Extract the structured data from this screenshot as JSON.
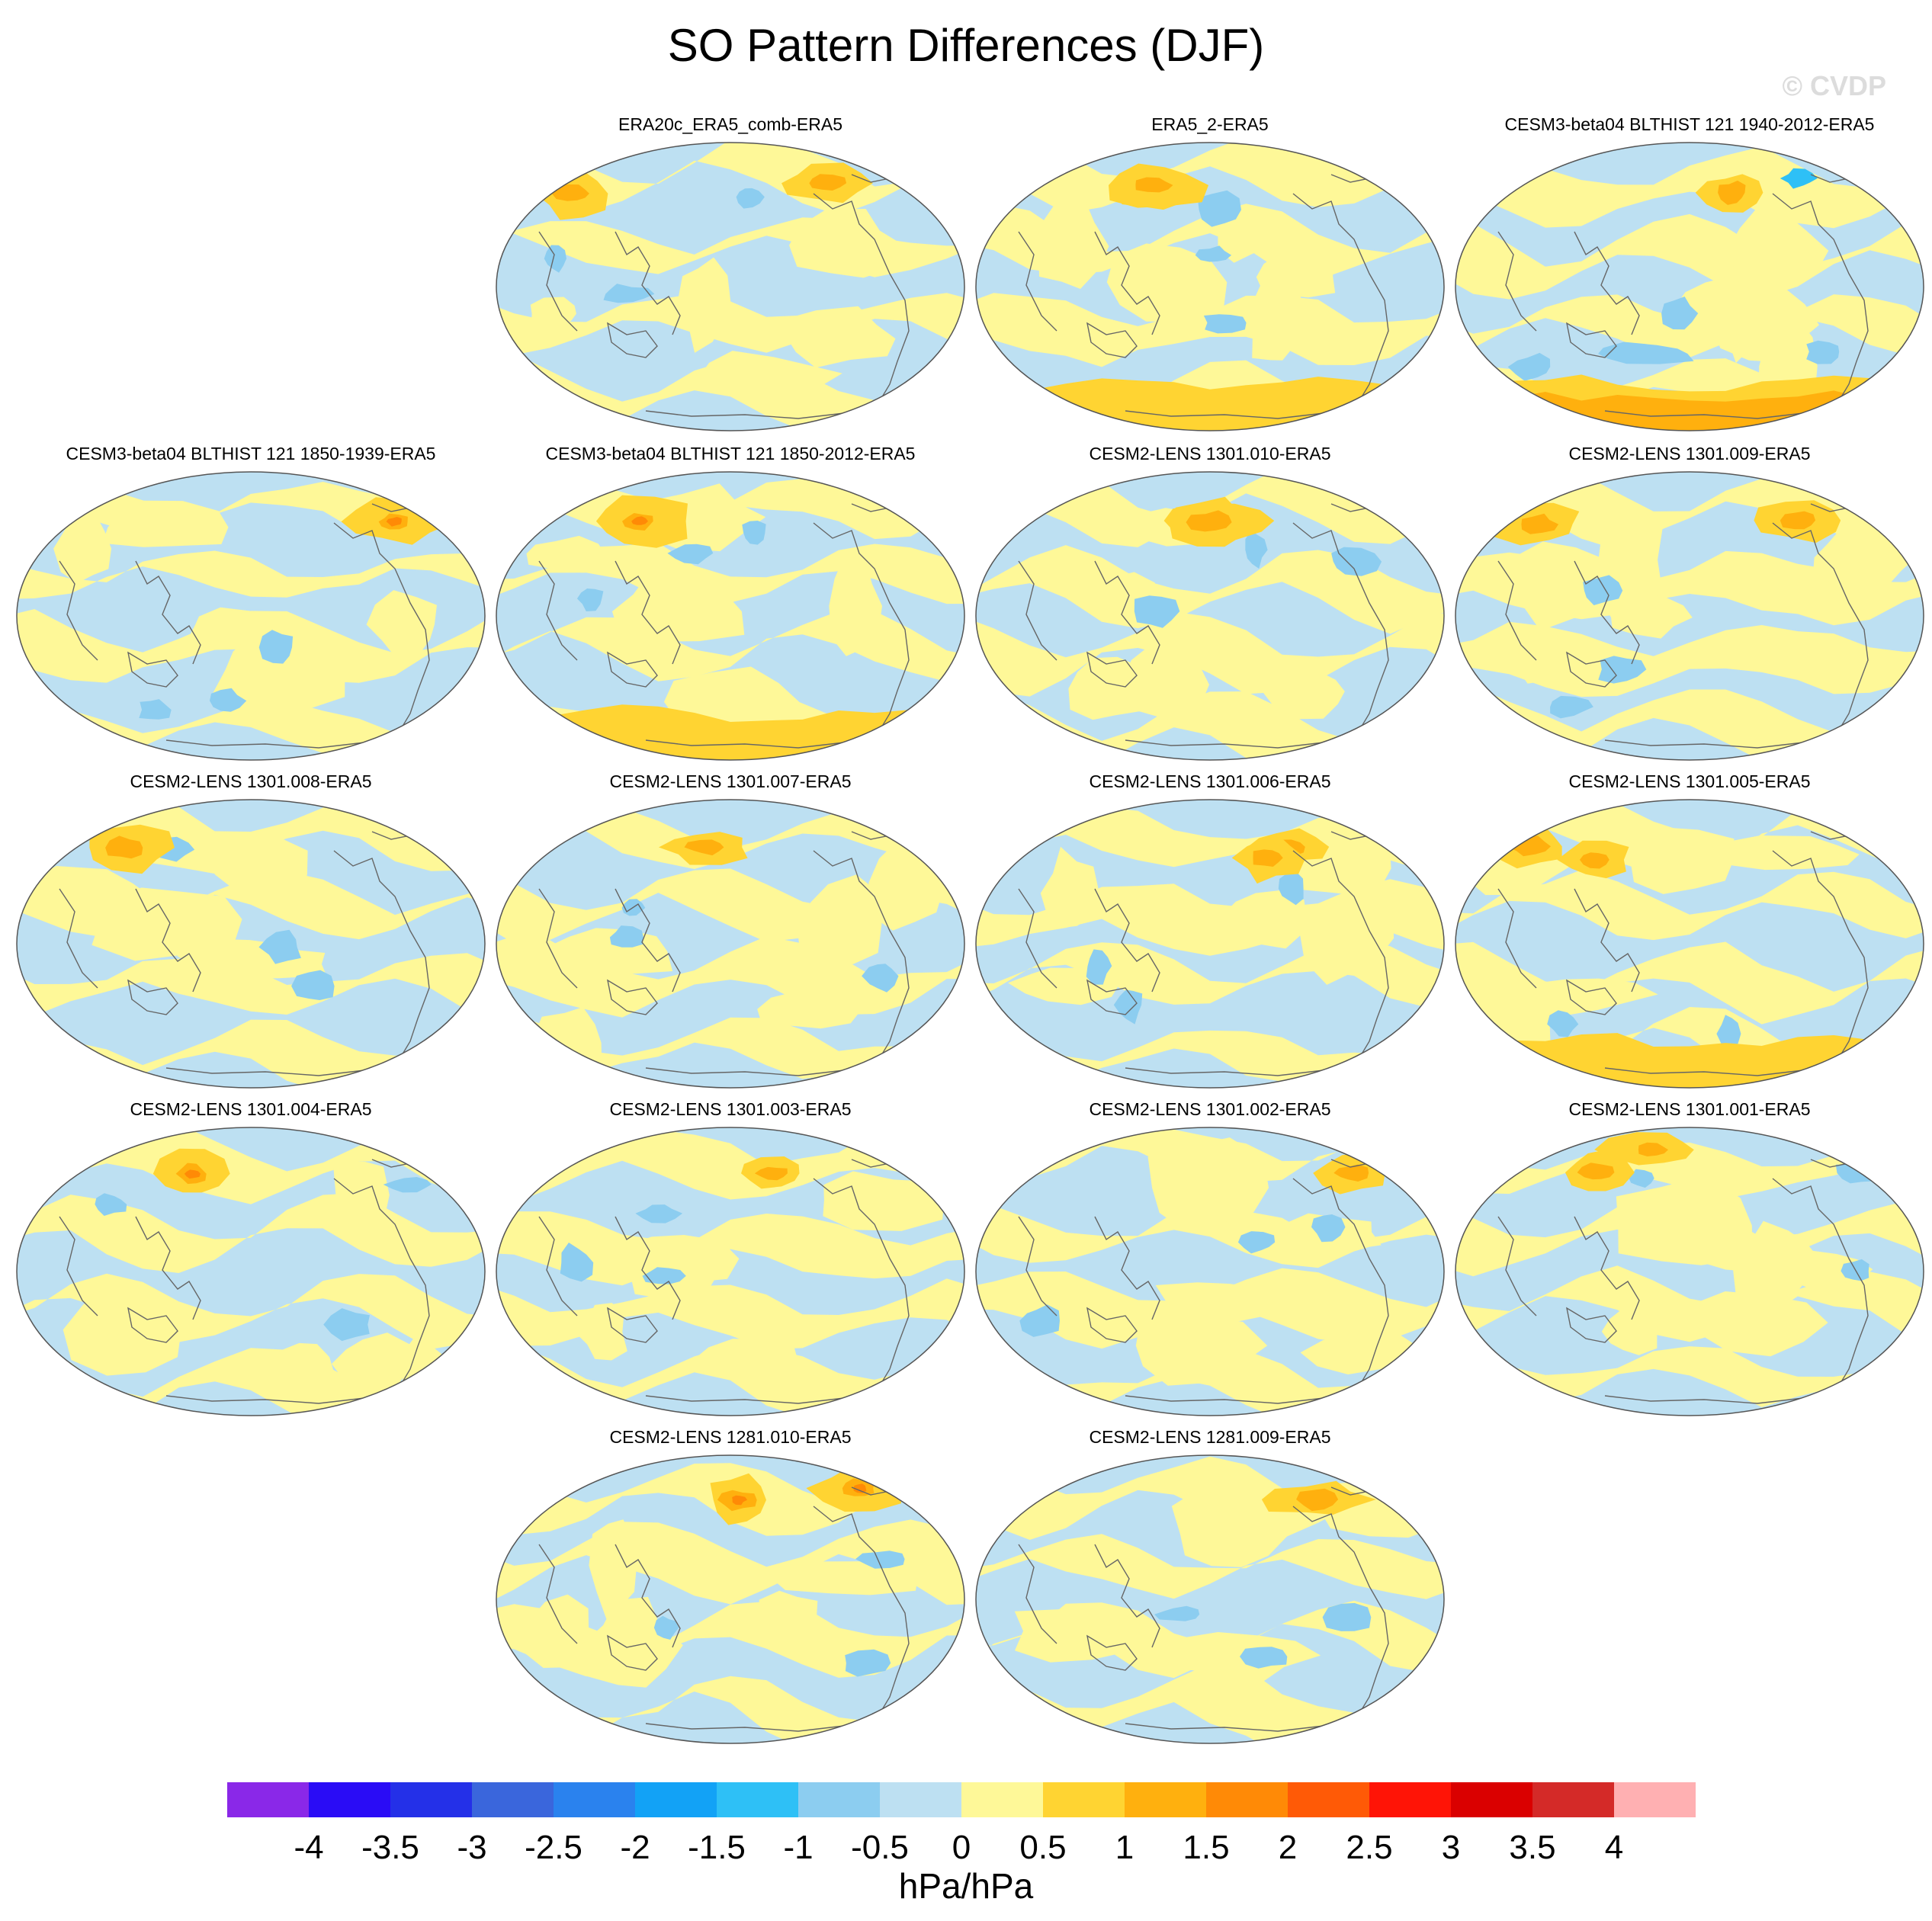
{
  "title": "SO Pattern Differences (DJF)",
  "watermark": "© CVDP",
  "panels": [
    {
      "label": "ERA20c_ERA5_comb-ERA5",
      "variant": 0
    },
    {
      "label": "ERA5_2-ERA5",
      "variant": 1
    },
    {
      "label": "CESM3-beta04 BLTHIST 121 1940-2012-ERA5",
      "variant": 2
    },
    {
      "label": "CESM3-beta04 BLTHIST 121 1850-1939-ERA5",
      "variant": 3
    },
    {
      "label": "CESM3-beta04 BLTHIST 121 1850-2012-ERA5",
      "variant": 4
    },
    {
      "label": "CESM2-LENS 1301.010-ERA5",
      "variant": 5
    },
    {
      "label": "CESM2-LENS 1301.009-ERA5",
      "variant": 6
    },
    {
      "label": "CESM2-LENS 1301.008-ERA5",
      "variant": 7
    },
    {
      "label": "CESM2-LENS 1301.007-ERA5",
      "variant": 8
    },
    {
      "label": "CESM2-LENS 1301.006-ERA5",
      "variant": 9
    },
    {
      "label": "CESM2-LENS 1301.005-ERA5",
      "variant": 10
    },
    {
      "label": "CESM2-LENS 1301.004-ERA5",
      "variant": 11
    },
    {
      "label": "CESM2-LENS 1301.003-ERA5",
      "variant": 12
    },
    {
      "label": "CESM2-LENS 1301.002-ERA5",
      "variant": 13
    },
    {
      "label": "CESM2-LENS 1301.001-ERA5",
      "variant": 14
    },
    {
      "label": "CESM2-LENS 1281.010-ERA5",
      "variant": 15
    },
    {
      "label": "CESM2-LENS 1281.009-ERA5",
      "variant": 16
    }
  ],
  "colorbar": {
    "ticks": [
      "-4",
      "-3.5",
      "-3",
      "-2.5",
      "-2",
      "-1.5",
      "-1",
      "-0.5",
      "0",
      "0.5",
      "1",
      "1.5",
      "2",
      "2.5",
      "3",
      "3.5",
      "4"
    ],
    "colors": [
      "#8a28e8",
      "#2a0cf6",
      "#2430e8",
      "#3a66dc",
      "#2a82ee",
      "#12a2f6",
      "#2ec0f6",
      "#8ccdf0",
      "#bde0f2",
      "#fef898",
      "#ffd432",
      "#ffb00e",
      "#ff8a06",
      "#ff5a06",
      "#ff1406",
      "#da0000",
      "#d42a28",
      "#ffb0b2"
    ],
    "label": "hPa/hPa"
  }
}
